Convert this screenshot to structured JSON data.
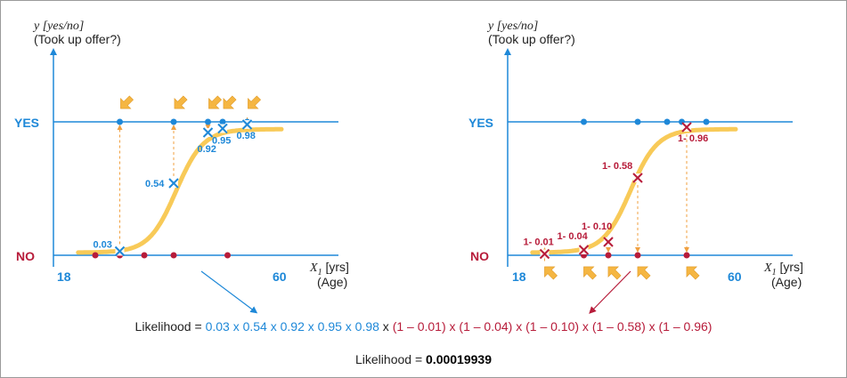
{
  "colors": {
    "axis_blue": "#1e88d8",
    "curve": "#f8c74f",
    "arrow": "#f5b642",
    "dash": "#f0a040",
    "yes_blue": "#1e88d8",
    "no_red": "#b71c3a"
  },
  "left_chart": {
    "y_label_line1": "y [yes/no]",
    "y_label_line2": "(Took up offer?)",
    "yes_label": "YES",
    "no_label": "NO",
    "x_min_label": "18",
    "x_max_label": "60",
    "x_label_line1": "X1 [yrs]",
    "x_label_line2": "(Age)",
    "yes_points": [
      {
        "age": 27,
        "prob_label": "0.03",
        "prob": 0.03
      },
      {
        "age": 38,
        "prob_label": "0.54",
        "prob": 0.54
      },
      {
        "age": 45,
        "prob_label": "0.92",
        "prob": 0.92
      },
      {
        "age": 48,
        "prob_label": "0.95",
        "prob": 0.95
      },
      {
        "age": 53,
        "prob_label": "0.98",
        "prob": 0.98
      }
    ],
    "no_points": [
      {
        "age": 22
      },
      {
        "age": 27
      },
      {
        "age": 32
      },
      {
        "age": 38
      },
      {
        "age": 49
      }
    ]
  },
  "right_chart": {
    "y_label_line1": "y [yes/no]",
    "y_label_line2": "(Took up offer?)",
    "yes_label": "YES",
    "no_label": "NO",
    "x_min_label": "18",
    "x_max_label": "60",
    "x_label_line1": "X1 [yrs]",
    "x_label_line2": "(Age)",
    "yes_points": [
      {
        "age": 29
      },
      {
        "age": 40
      },
      {
        "age": 46
      },
      {
        "age": 49
      },
      {
        "age": 54
      }
    ],
    "no_points": [
      {
        "age": 21,
        "prob_label": "1- 0.01",
        "prob": 0.01
      },
      {
        "age": 29,
        "prob_label": "1- 0.04",
        "prob": 0.04
      },
      {
        "age": 34,
        "prob_label": "1- 0.10",
        "prob": 0.1
      },
      {
        "age": 40,
        "prob_label": "1- 0.58",
        "prob": 0.58
      },
      {
        "age": 50,
        "prob_label": "1- 0.96",
        "prob": 0.96
      }
    ]
  },
  "equation": {
    "prefix": "Likelihood = ",
    "blue_part": "0.03 x 0.54 x 0.92 x 0.95 x 0.98",
    "times": " x ",
    "red_part": "(1 – 0.01) x (1 – 0.04) x (1 – 0.10) x (1 – 0.58) x (1 – 0.96)",
    "result_prefix": "Likelihood = ",
    "result_value": "0.00019939"
  }
}
